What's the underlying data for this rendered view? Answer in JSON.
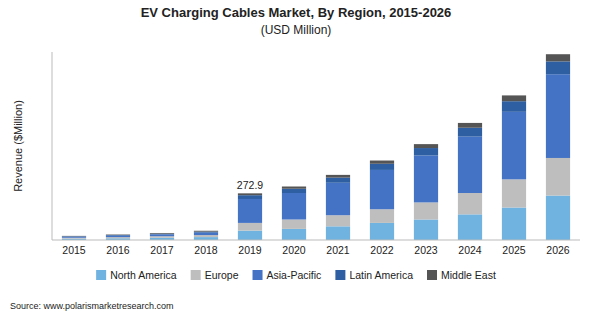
{
  "chart_data": {
    "type": "bar",
    "stacked": true,
    "title": "EV Charging Cables Market, By Region, 2015-2026",
    "subtitle": "(USD Million)",
    "ylabel": "Revenue ($Million)",
    "source": "Source: www.polarismarketresearch.com",
    "categories": [
      "2015",
      "2016",
      "2017",
      "2018",
      "2019",
      "2020",
      "2021",
      "2022",
      "2023",
      "2024",
      "2025",
      "2026"
    ],
    "series": [
      {
        "name": "North America",
        "color": "#70B3E0",
        "values": [
          8,
          10,
          13,
          17,
          55,
          65,
          80,
          100,
          120,
          150,
          190,
          260
        ]
      },
      {
        "name": "Europe",
        "color": "#BEBEBE",
        "values": [
          5,
          7,
          9,
          12,
          45,
          55,
          65,
          80,
          100,
          125,
          165,
          220
        ]
      },
      {
        "name": "Asia-Pacific",
        "color": "#4472C4",
        "values": [
          6,
          8,
          10,
          14,
          140,
          155,
          190,
          230,
          275,
          330,
          395,
          490
        ]
      },
      {
        "name": "Latin America",
        "color": "#2E5FA3",
        "values": [
          3,
          4,
          5,
          6,
          22,
          25,
          30,
          36,
          43,
          52,
          62,
          75
        ]
      },
      {
        "name": "Middle East",
        "color": "#555555",
        "values": [
          2,
          3,
          4,
          5,
          11,
          13,
          16,
          19,
          23,
          28,
          34,
          42
        ]
      }
    ],
    "annotations": [
      {
        "category": "2019",
        "text": "272.9"
      }
    ],
    "ylim": [
      0,
      1100
    ],
    "tick_labels": "x",
    "grid": false,
    "legend": "bottom"
  }
}
